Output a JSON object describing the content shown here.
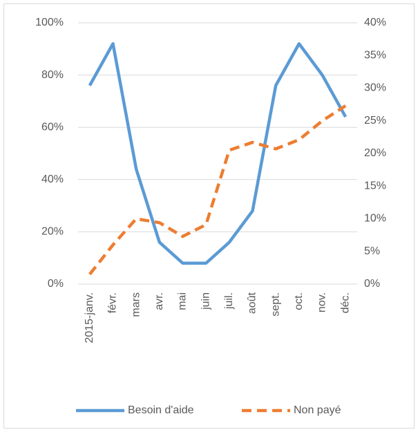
{
  "chart_data": {
    "type": "line",
    "categories": [
      "2015-janv.",
      "févr.",
      "mars",
      "avr.",
      "mai",
      "juin",
      "juil.",
      "août",
      "sept.",
      "oct.",
      "nov.",
      "déc."
    ],
    "series": [
      {
        "name": "Besoin d'aide",
        "color": "#5b9bd5",
        "values": [
          76,
          92,
          44,
          16,
          8,
          8,
          16,
          28,
          76,
          92,
          80,
          64
        ]
      },
      {
        "name": "Non payé",
        "color": "#ed7d31",
        "axis": "y2",
        "dashed": true,
        "values": [
          1.5,
          6,
          10,
          9.4,
          7.3,
          9.1,
          20.5,
          21.7,
          20.7,
          22.1,
          25,
          27.3
        ]
      }
    ],
    "ylim": [
      0,
      100
    ],
    "yticks": [
      {
        "value": 0,
        "label": "0%"
      },
      {
        "value": 20,
        "label": "20%"
      },
      {
        "value": 40,
        "label": "40%"
      },
      {
        "value": 60,
        "label": "60%"
      },
      {
        "value": 80,
        "label": "80%"
      },
      {
        "value": 100,
        "label": "100%"
      }
    ],
    "y2lim": [
      0,
      40
    ],
    "y2ticks": [
      {
        "value": 0,
        "label": "0%"
      },
      {
        "value": 5,
        "label": "5%"
      },
      {
        "value": 10,
        "label": "10%"
      },
      {
        "value": 15,
        "label": "15%"
      },
      {
        "value": 20,
        "label": "20%"
      },
      {
        "value": 25,
        "label": "25%"
      },
      {
        "value": 30,
        "label": "30%"
      },
      {
        "value": 35,
        "label": "35%"
      },
      {
        "value": 40,
        "label": "40%"
      }
    ],
    "grid": true,
    "legend": "bottom"
  }
}
